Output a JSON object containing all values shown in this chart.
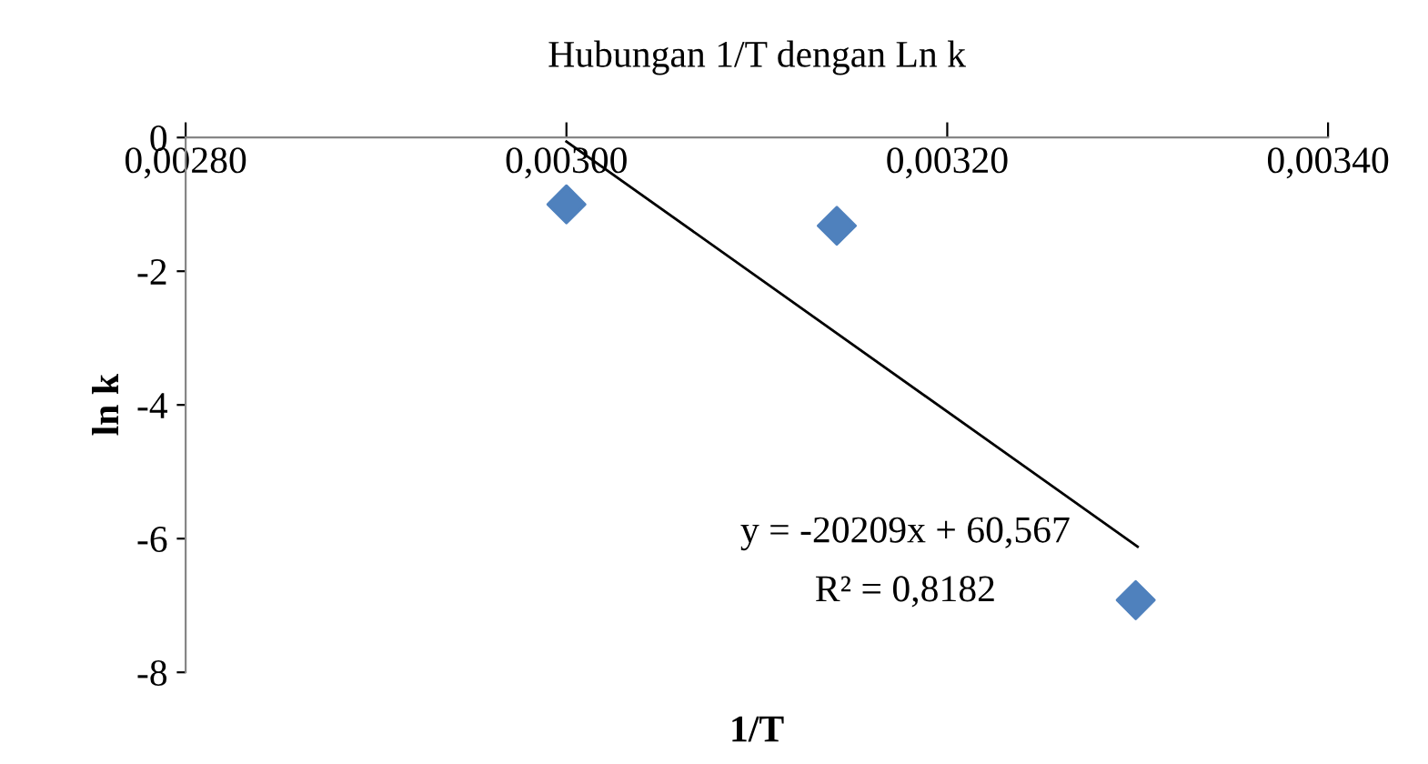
{
  "chart_data": {
    "type": "scatter",
    "title": "Hubungan 1/T dengan Ln k",
    "xlabel": "1/T",
    "ylabel": "ln k",
    "series": [
      {
        "color": "#4f81bd",
        "marker": "diamond",
        "x": [
          0.003,
          0.003142,
          0.003299
        ],
        "values": [
          -1.0,
          -1.32,
          -6.92
        ]
      },
      {
        "type": "line",
        "color": "#000000",
        "marker": "none",
        "x": [
          0.003,
          0.0033
        ],
        "values": [
          -0.06,
          -6.12
        ]
      }
    ],
    "xlim": [
      0.0028,
      0.0034
    ],
    "xticks": [
      {
        "value": 0.0028,
        "label": "0,00280"
      },
      {
        "value": 0.003,
        "label": "0,00300"
      },
      {
        "value": 0.0032,
        "label": "0,00320"
      },
      {
        "value": 0.0034,
        "label": "0,00340"
      }
    ],
    "ylim": [
      -8,
      0
    ],
    "yticks": [
      0,
      -2,
      -4,
      -6,
      -8
    ],
    "annotations": [
      "y = -20209x + 60,567",
      "R² = 0,8182"
    ],
    "grid": false,
    "legend": false
  }
}
